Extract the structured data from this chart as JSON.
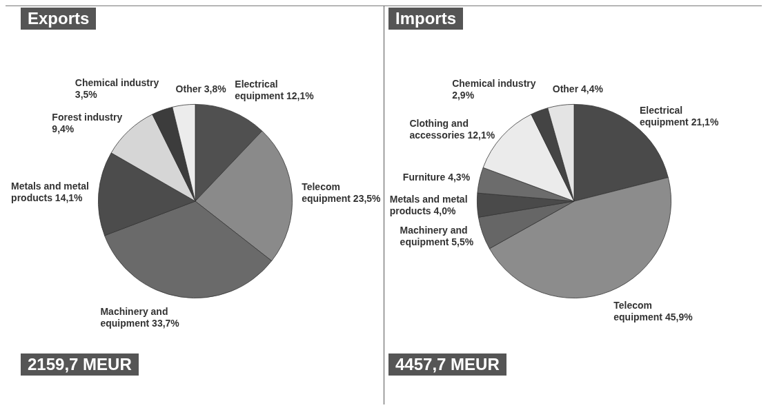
{
  "chart_data": [
    {
      "type": "pie",
      "title": "Exports",
      "categories": [
        "Electrical equipment",
        "Telecom equipment",
        "Machinery and equipment",
        "Metals and metal products",
        "Forest industry",
        "Chemical industry",
        "Other"
      ],
      "values": [
        12.1,
        23.5,
        33.7,
        14.1,
        9.4,
        3.5,
        3.8
      ],
      "value_labels": [
        "12,1%",
        "23,5%",
        "33,7%",
        "14,1%",
        "9,4%",
        "3,5%",
        "3,8%"
      ],
      "colors": [
        "#505050",
        "#8a8a8a",
        "#6a6a6a",
        "#4c4c4c",
        "#d6d6d6",
        "#3c3c3c",
        "#ececec"
      ],
      "annotations": [
        "2159,7 MEUR"
      ]
    },
    {
      "type": "pie",
      "title": "Imports",
      "categories": [
        "Electrical equipment",
        "Telecom equipment",
        "Machinery and equipment",
        "Metals and metal products",
        "Furniture",
        "Clothing and accessories",
        "Chemical industry",
        "Other"
      ],
      "values": [
        21.1,
        45.9,
        5.5,
        4.0,
        4.3,
        12.1,
        2.9,
        4.4
      ],
      "value_labels": [
        "21,1%",
        "45,9%",
        "5,5%",
        "4,0%",
        "4,3%",
        "12,1%",
        "2,9%",
        "4,4%"
      ],
      "colors": [
        "#4a4a4a",
        "#8c8c8c",
        "#666666",
        "#4a4a4a",
        "#6c6c6c",
        "#ebebeb",
        "#444444",
        "#e4e4e4"
      ],
      "annotations": [
        "4457,7 MEUR"
      ]
    }
  ]
}
